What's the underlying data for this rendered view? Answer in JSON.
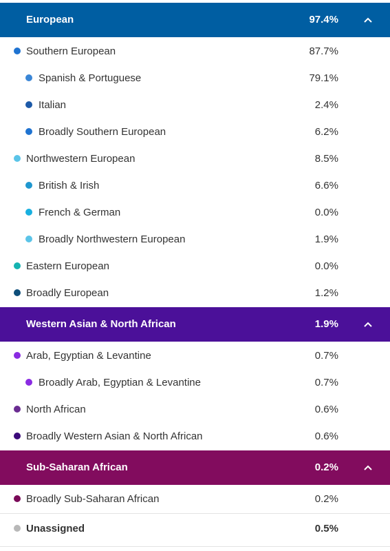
{
  "groups": [
    {
      "label": "European",
      "pct": "97.4%",
      "color": "#005ea2",
      "rows": [
        {
          "label": "Southern European",
          "pct": "87.7%",
          "level": 1,
          "dot": "#1f73d1"
        },
        {
          "label": "Spanish & Portuguese",
          "pct": "79.1%",
          "level": 2,
          "dot": "#3a86d6"
        },
        {
          "label": "Italian",
          "pct": "2.4%",
          "level": 2,
          "dot": "#1d5aa8"
        },
        {
          "label": "Broadly Southern European",
          "pct": "6.2%",
          "level": 2,
          "dot": "#1f73d1"
        },
        {
          "label": "Northwestern European",
          "pct": "8.5%",
          "level": 1,
          "dot": "#5bc4e8"
        },
        {
          "label": "British & Irish",
          "pct": "6.6%",
          "level": 2,
          "dot": "#1f97cf"
        },
        {
          "label": "French & German",
          "pct": "0.0%",
          "level": 2,
          "dot": "#18b0e0"
        },
        {
          "label": "Broadly Northwestern European",
          "pct": "1.9%",
          "level": 2,
          "dot": "#5bc4e8"
        },
        {
          "label": "Eastern European",
          "pct": "0.0%",
          "level": 1,
          "dot": "#16b3b1"
        },
        {
          "label": "Broadly European",
          "pct": "1.2%",
          "level": 1,
          "dot": "#0d4e7a"
        }
      ]
    },
    {
      "label": "Western Asian & North African",
      "pct": "1.9%",
      "color": "#4b1099",
      "rows": [
        {
          "label": "Arab, Egyptian & Levantine",
          "pct": "0.7%",
          "level": 1,
          "dot": "#8a2be2"
        },
        {
          "label": "Broadly Arab, Egyptian & Levantine",
          "pct": "0.7%",
          "level": 2,
          "dot": "#8a2be2"
        },
        {
          "label": "North African",
          "pct": "0.6%",
          "level": 1,
          "dot": "#6a2c91"
        },
        {
          "label": "Broadly Western Asian & North African",
          "pct": "0.6%",
          "level": 1,
          "dot": "#3b0a7a"
        }
      ]
    },
    {
      "label": "Sub-Saharan African",
      "pct": "0.2%",
      "color": "#820c5e",
      "rows": [
        {
          "label": "Broadly Sub-Saharan African",
          "pct": "0.2%",
          "level": 1,
          "dot": "#7a0a58"
        }
      ]
    }
  ],
  "unassigned": {
    "label": "Unassigned",
    "pct": "0.5%",
    "dot": "#b8b8b8"
  },
  "icons": {
    "collapse": "chevron-up-icon"
  }
}
